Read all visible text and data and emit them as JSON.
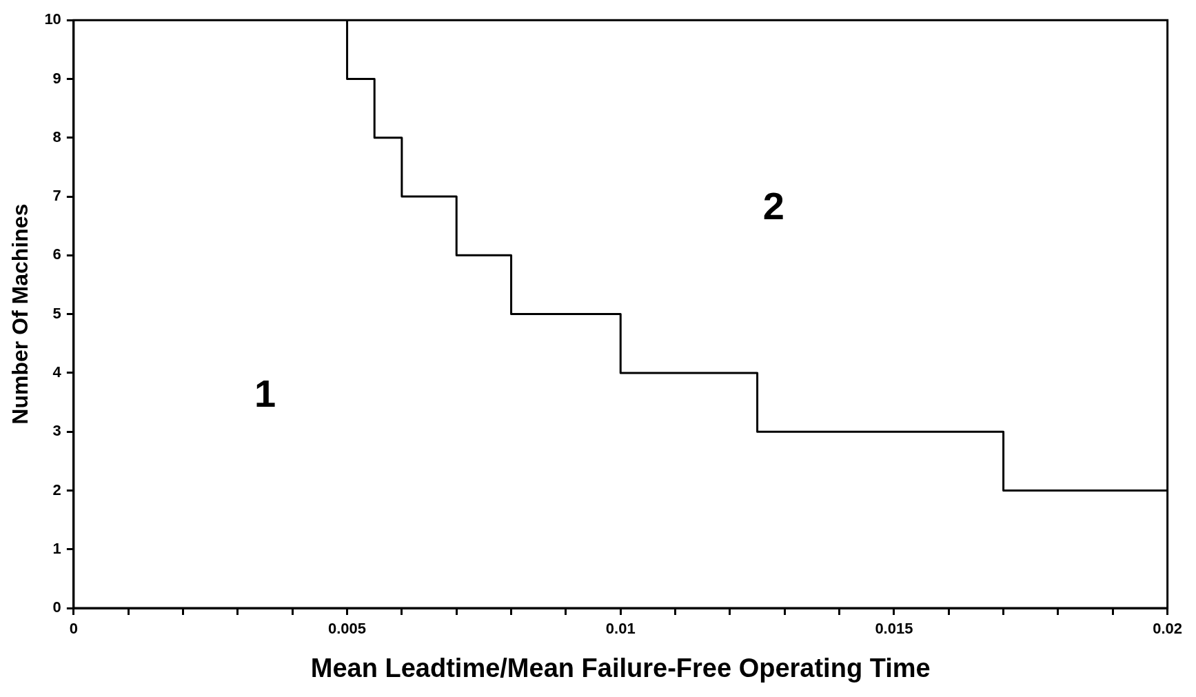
{
  "chart_data": {
    "type": "step",
    "xlabel": "Mean Leadtime/Mean Failure-Free Operating Time",
    "ylabel": "Number Of Machines",
    "x": [
      0.005,
      0.0055,
      0.006,
      0.007,
      0.008,
      0.01,
      0.0125,
      0.017,
      0.02
    ],
    "series": [
      {
        "color": "#000000",
        "values": [
          10,
          9,
          8,
          7,
          6,
          5,
          4,
          3,
          2
        ]
      }
    ],
    "xlim": [
      0,
      0.02
    ],
    "xticks": [
      0,
      {
        "value": 0.001,
        "label": null
      },
      {
        "value": 0.002,
        "label": null
      },
      {
        "value": 0.003,
        "label": null
      },
      {
        "value": 0.004,
        "label": null
      },
      0.005,
      {
        "value": 0.006,
        "label": null
      },
      {
        "value": 0.007,
        "label": null
      },
      {
        "value": 0.008,
        "label": null
      },
      {
        "value": 0.009,
        "label": null
      },
      0.01,
      {
        "value": 0.011,
        "label": null
      },
      {
        "value": 0.012,
        "label": null
      },
      {
        "value": 0.013,
        "label": null
      },
      {
        "value": 0.014,
        "label": null
      },
      0.015,
      {
        "value": 0.016,
        "label": null
      },
      {
        "value": 0.017,
        "label": null
      },
      {
        "value": 0.018,
        "label": null
      },
      {
        "value": 0.019,
        "label": null
      },
      0.02
    ],
    "ylim": [
      0,
      10
    ],
    "yticks": [
      0,
      1,
      2,
      3,
      4,
      5,
      6,
      7,
      8,
      9,
      10
    ],
    "grid": false,
    "legend": false,
    "marker": "none",
    "line_style": "solid",
    "annotations": [
      "1",
      "2"
    ]
  }
}
